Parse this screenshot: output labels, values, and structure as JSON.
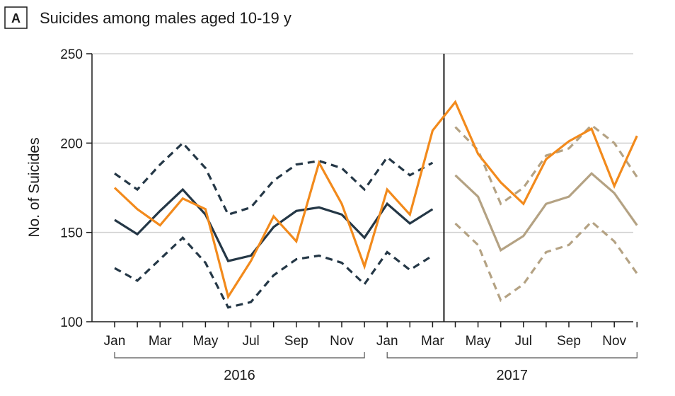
{
  "panel_label": "A",
  "title": "Suicides among males aged 10-19 y",
  "colors": {
    "observed": "#f28a1c",
    "predicted_2016": "#243746",
    "predicted_2017": "#b4a283",
    "grid": "#d0d0d0",
    "axis": "#1a1a1a"
  },
  "chart_data": {
    "type": "line",
    "title": "Suicides among males aged 10-19 y",
    "xlabel": "",
    "ylabel": "No. of Suicides",
    "ylim": [
      100,
      250
    ],
    "yticks": [
      100,
      150,
      200,
      250
    ],
    "grid": true,
    "months": 24,
    "x_tick_labels": [
      {
        "index": 0,
        "label": "Jan"
      },
      {
        "index": 2,
        "label": "Mar"
      },
      {
        "index": 4,
        "label": "May"
      },
      {
        "index": 6,
        "label": "Jul"
      },
      {
        "index": 8,
        "label": "Sep"
      },
      {
        "index": 10,
        "label": "Nov"
      },
      {
        "index": 12,
        "label": "Jan"
      },
      {
        "index": 14,
        "label": "Mar"
      },
      {
        "index": 16,
        "label": "May"
      },
      {
        "index": 18,
        "label": "Jul"
      },
      {
        "index": 20,
        "label": "Sep"
      },
      {
        "index": 22,
        "label": "Nov"
      }
    ],
    "year_groups": [
      {
        "label": "2016",
        "start": 0,
        "end": 11
      },
      {
        "label": "2017",
        "start": 12,
        "end": 23
      }
    ],
    "vertical_marker_index": 14.5,
    "series": [
      {
        "style": "dashed",
        "color_key": "predicted_2016",
        "start": 0,
        "values": [
          183,
          174,
          188,
          200,
          186,
          160,
          164,
          179,
          188,
          190,
          186,
          174,
          192,
          182,
          189
        ]
      },
      {
        "style": "solid",
        "color_key": "predicted_2016",
        "start": 0,
        "values": [
          157,
          149,
          162,
          174,
          160,
          134,
          137,
          153,
          162,
          164,
          160,
          147,
          166,
          155,
          163
        ]
      },
      {
        "style": "dashed",
        "color_key": "predicted_2016",
        "start": 0,
        "values": [
          130,
          123,
          135,
          147,
          133,
          108,
          111,
          126,
          135,
          137,
          133,
          121,
          139,
          129,
          137
        ]
      },
      {
        "style": "dashed",
        "color_key": "predicted_2017",
        "start": 15,
        "values": [
          209,
          196,
          166,
          175,
          193,
          197,
          210,
          200,
          181
        ]
      },
      {
        "style": "solid",
        "color_key": "predicted_2017",
        "start": 15,
        "values": [
          182,
          170,
          140,
          148,
          166,
          170,
          183,
          172,
          154
        ]
      },
      {
        "style": "dashed",
        "color_key": "predicted_2017",
        "start": 15,
        "values": [
          155,
          143,
          112,
          121,
          139,
          143,
          156,
          145,
          127
        ]
      },
      {
        "style": "solid",
        "color_key": "observed",
        "start": 0,
        "values": [
          175,
          163,
          154,
          169,
          163,
          114,
          134,
          159,
          145,
          189,
          166,
          131,
          174,
          160,
          207,
          223,
          194,
          178,
          166,
          191,
          201,
          208,
          176,
          204
        ]
      }
    ]
  }
}
